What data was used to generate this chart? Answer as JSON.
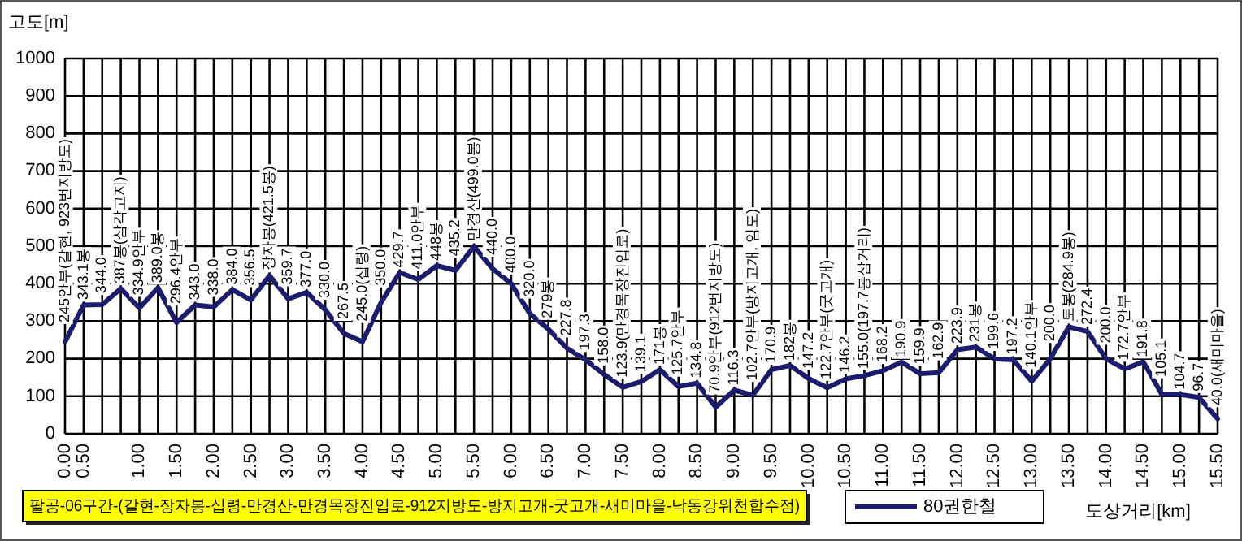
{
  "chart_data": {
    "type": "line",
    "title": "팔공-06구간-(갈현-장자봉-십령-만경산-만경목장진입로-912지방도-방지고개-굿고개-새미마을-낙동강위천합수점)",
    "xlabel": "도상거리[km]",
    "ylabel": "고도[m]",
    "categories": [
      "0.00",
      "0.50",
      null,
      null,
      "1.00",
      null,
      "1.50",
      null,
      "2.00",
      null,
      "2.50",
      null,
      "3.00",
      null,
      "3.50",
      null,
      "4.00",
      null,
      "4.50",
      null,
      "5.00",
      null,
      "5.50",
      null,
      "6.00",
      null,
      "6.50",
      null,
      "7.00",
      null,
      "7.50",
      null,
      "8.00",
      null,
      "8.50",
      null,
      "9.00",
      null,
      "9.50",
      null,
      "10.00",
      null,
      "10.50",
      null,
      "11.00",
      null,
      "11.50",
      null,
      "12.00",
      null,
      "12.50",
      null,
      "13.00",
      null,
      "13.50",
      null,
      "14.00",
      null,
      "14.50",
      null,
      "15.00",
      null,
      "15.50"
    ],
    "series": [
      {
        "name": "80권한철",
        "color": "#1c1c6e",
        "values": [
          245,
          343.1,
          344.0,
          387,
          334.9,
          389.0,
          296.4,
          343.0,
          338.0,
          384.0,
          356.5,
          421.5,
          359.7,
          377.0,
          330.0,
          267.5,
          245.0,
          350.0,
          429.7,
          411.0,
          448,
          435.2,
          499.0,
          440.0,
          400.0,
          320.0,
          279,
          227.8,
          197.3,
          158.0,
          123.9,
          139.1,
          171,
          125.7,
          134.8,
          70.9,
          116.3,
          102.7,
          170.9,
          182,
          147.2,
          122.7,
          146.2,
          155.0,
          168.2,
          190.9,
          159.9,
          162.9,
          223.9,
          231,
          199.6,
          197.2,
          140.1,
          200.0,
          284.9,
          272.4,
          200.0,
          172.7,
          191.8,
          105.1,
          104.7,
          96.7,
          40.0
        ],
        "value_labels": [
          "245안부(갈현, 923번지방도)",
          "343.1봉",
          "344.0",
          "387봉(삼각고지)",
          "334.9안부",
          "389.0봉",
          "296.4안부",
          "343.0",
          "338.0",
          "384.0",
          "356.5",
          "장자봉(421.5봉)",
          "359.7",
          "377.0",
          "330.0",
          "267.5",
          "245.0(십령)",
          "350.0",
          "429.7",
          "411.0안부",
          "448봉",
          "435.2",
          "만경산(499.0봉)",
          "440.0",
          "400.0",
          "320.0",
          "279봉",
          "227.8",
          "197.3",
          "158.0",
          "123.9(만경목장진입로)",
          "139.1",
          "171봉",
          "125.7안부",
          "134.8",
          "70.9안부(912번지방도)",
          "116.3",
          "102.7안부(방지고개, 임도)",
          "170.9",
          "182봉",
          "147.2",
          "122.7안부(굿고개)",
          "146.2",
          "155.0(197.7봉삼거리)",
          "168.2",
          "190.9",
          "159.9",
          "162.9",
          "223.9",
          "231봉",
          "199.6",
          "197.2",
          "140.1안부",
          "200.0",
          "토봉(284.9봉)",
          "272.4",
          "200.0",
          "172.7안부",
          "191.8",
          "105.1",
          "104.7",
          "96.7",
          "40.0(새미마을)"
        ]
      }
    ],
    "ylim": [
      0,
      1000
    ],
    "yticks": [
      0,
      100,
      200,
      300,
      400,
      500,
      600,
      700,
      800,
      900,
      1000
    ],
    "grid": true,
    "legend": "bottom"
  }
}
